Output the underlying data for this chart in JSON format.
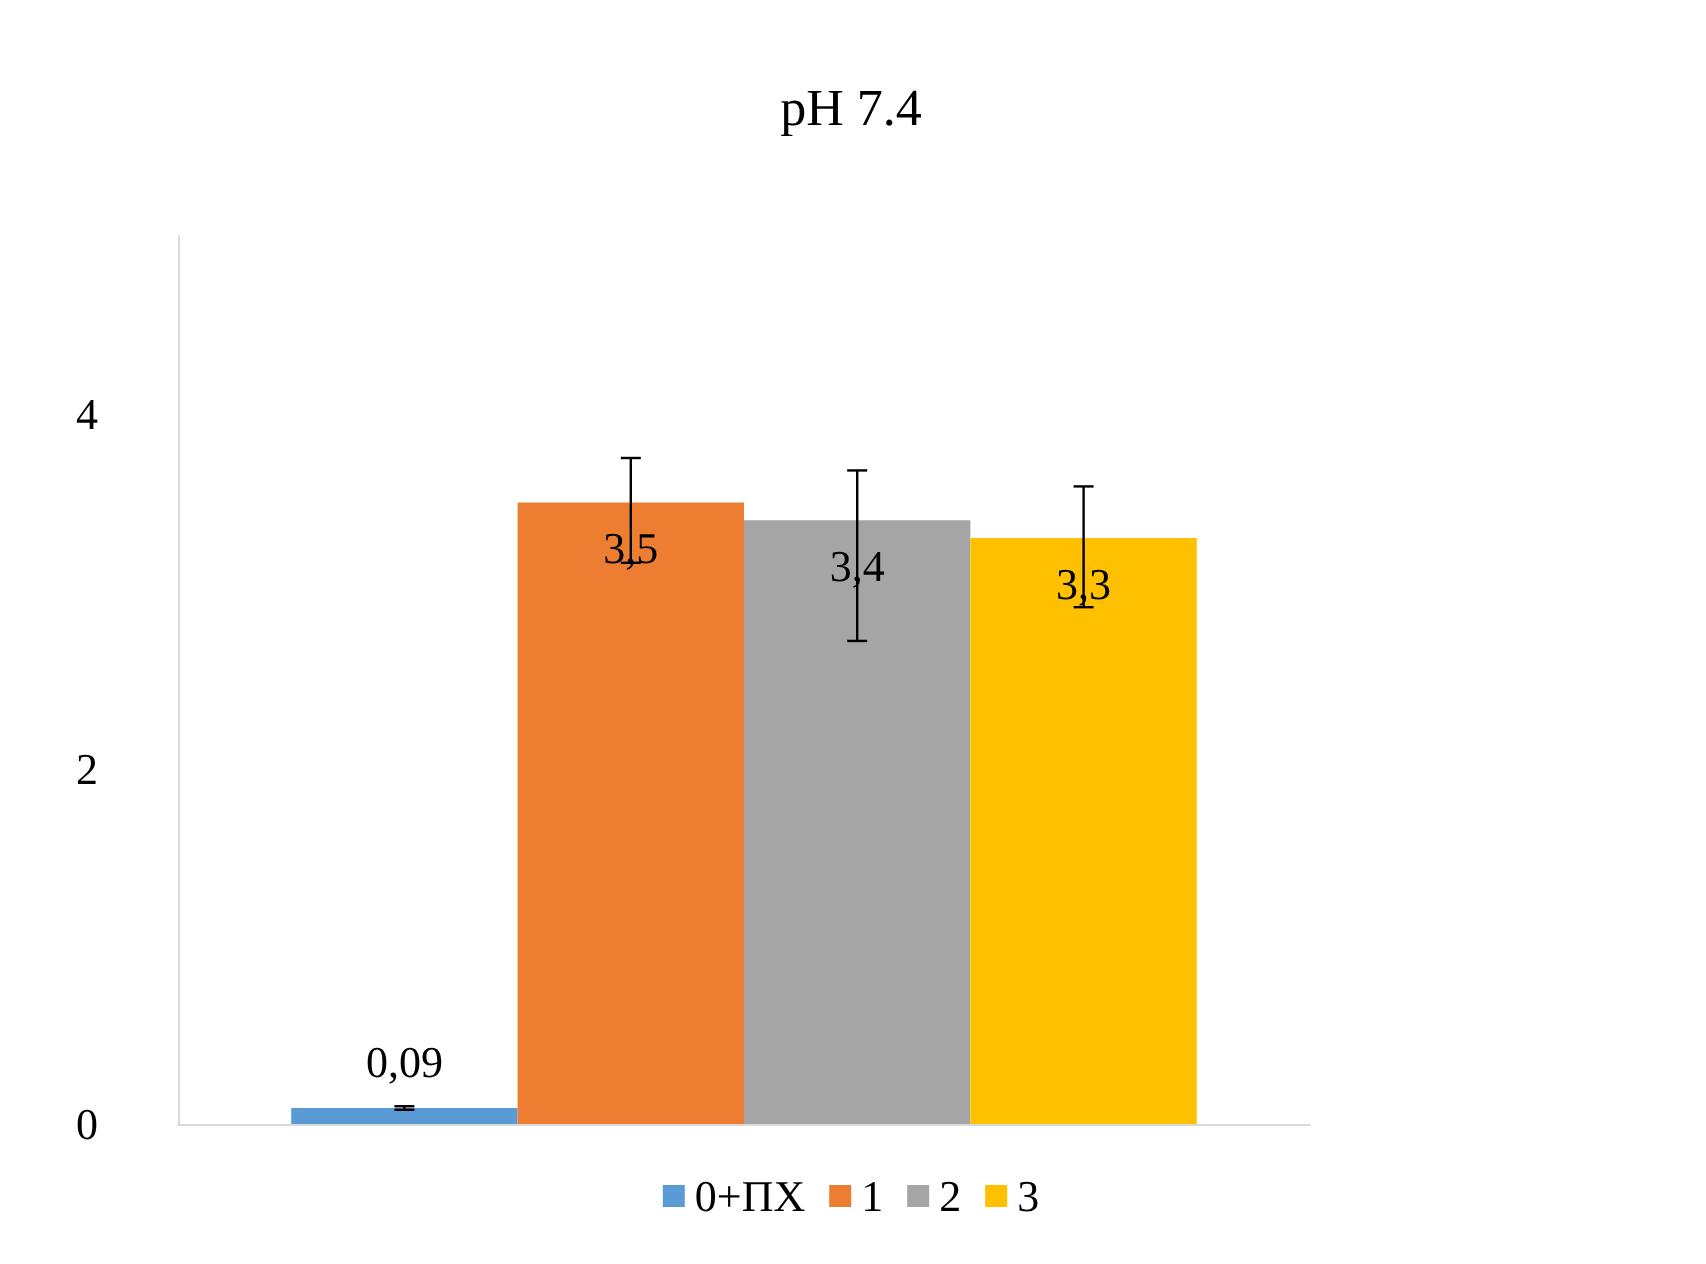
{
  "chart_data": {
    "type": "bar",
    "title": "pH 7.4",
    "categories": [
      null
    ],
    "series": [
      {
        "name": "0+ПХ",
        "color": "#5b9bd5",
        "values": [
          0.09
        ],
        "errors": [
          0.01
        ],
        "value_labels": [
          "0,09"
        ]
      },
      {
        "name": "1",
        "color": "#ed7d31",
        "values": [
          3.5
        ],
        "errors": [
          [
            3.16,
            3.75
          ]
        ],
        "value_labels": [
          "3,5"
        ]
      },
      {
        "name": "2",
        "color": "#a5a5a5",
        "values": [
          3.4
        ],
        "errors": [
          [
            2.72,
            3.68
          ]
        ],
        "value_labels": [
          "3,4"
        ]
      },
      {
        "name": "3",
        "color": "#ffc000",
        "values": [
          3.3
        ],
        "errors": [
          [
            2.91,
            3.59
          ]
        ],
        "value_labels": [
          "3,3"
        ]
      }
    ],
    "ylim": [
      0,
      5
    ],
    "yticks": [
      0,
      2,
      4
    ],
    "grid": false,
    "legend": "bottom"
  }
}
